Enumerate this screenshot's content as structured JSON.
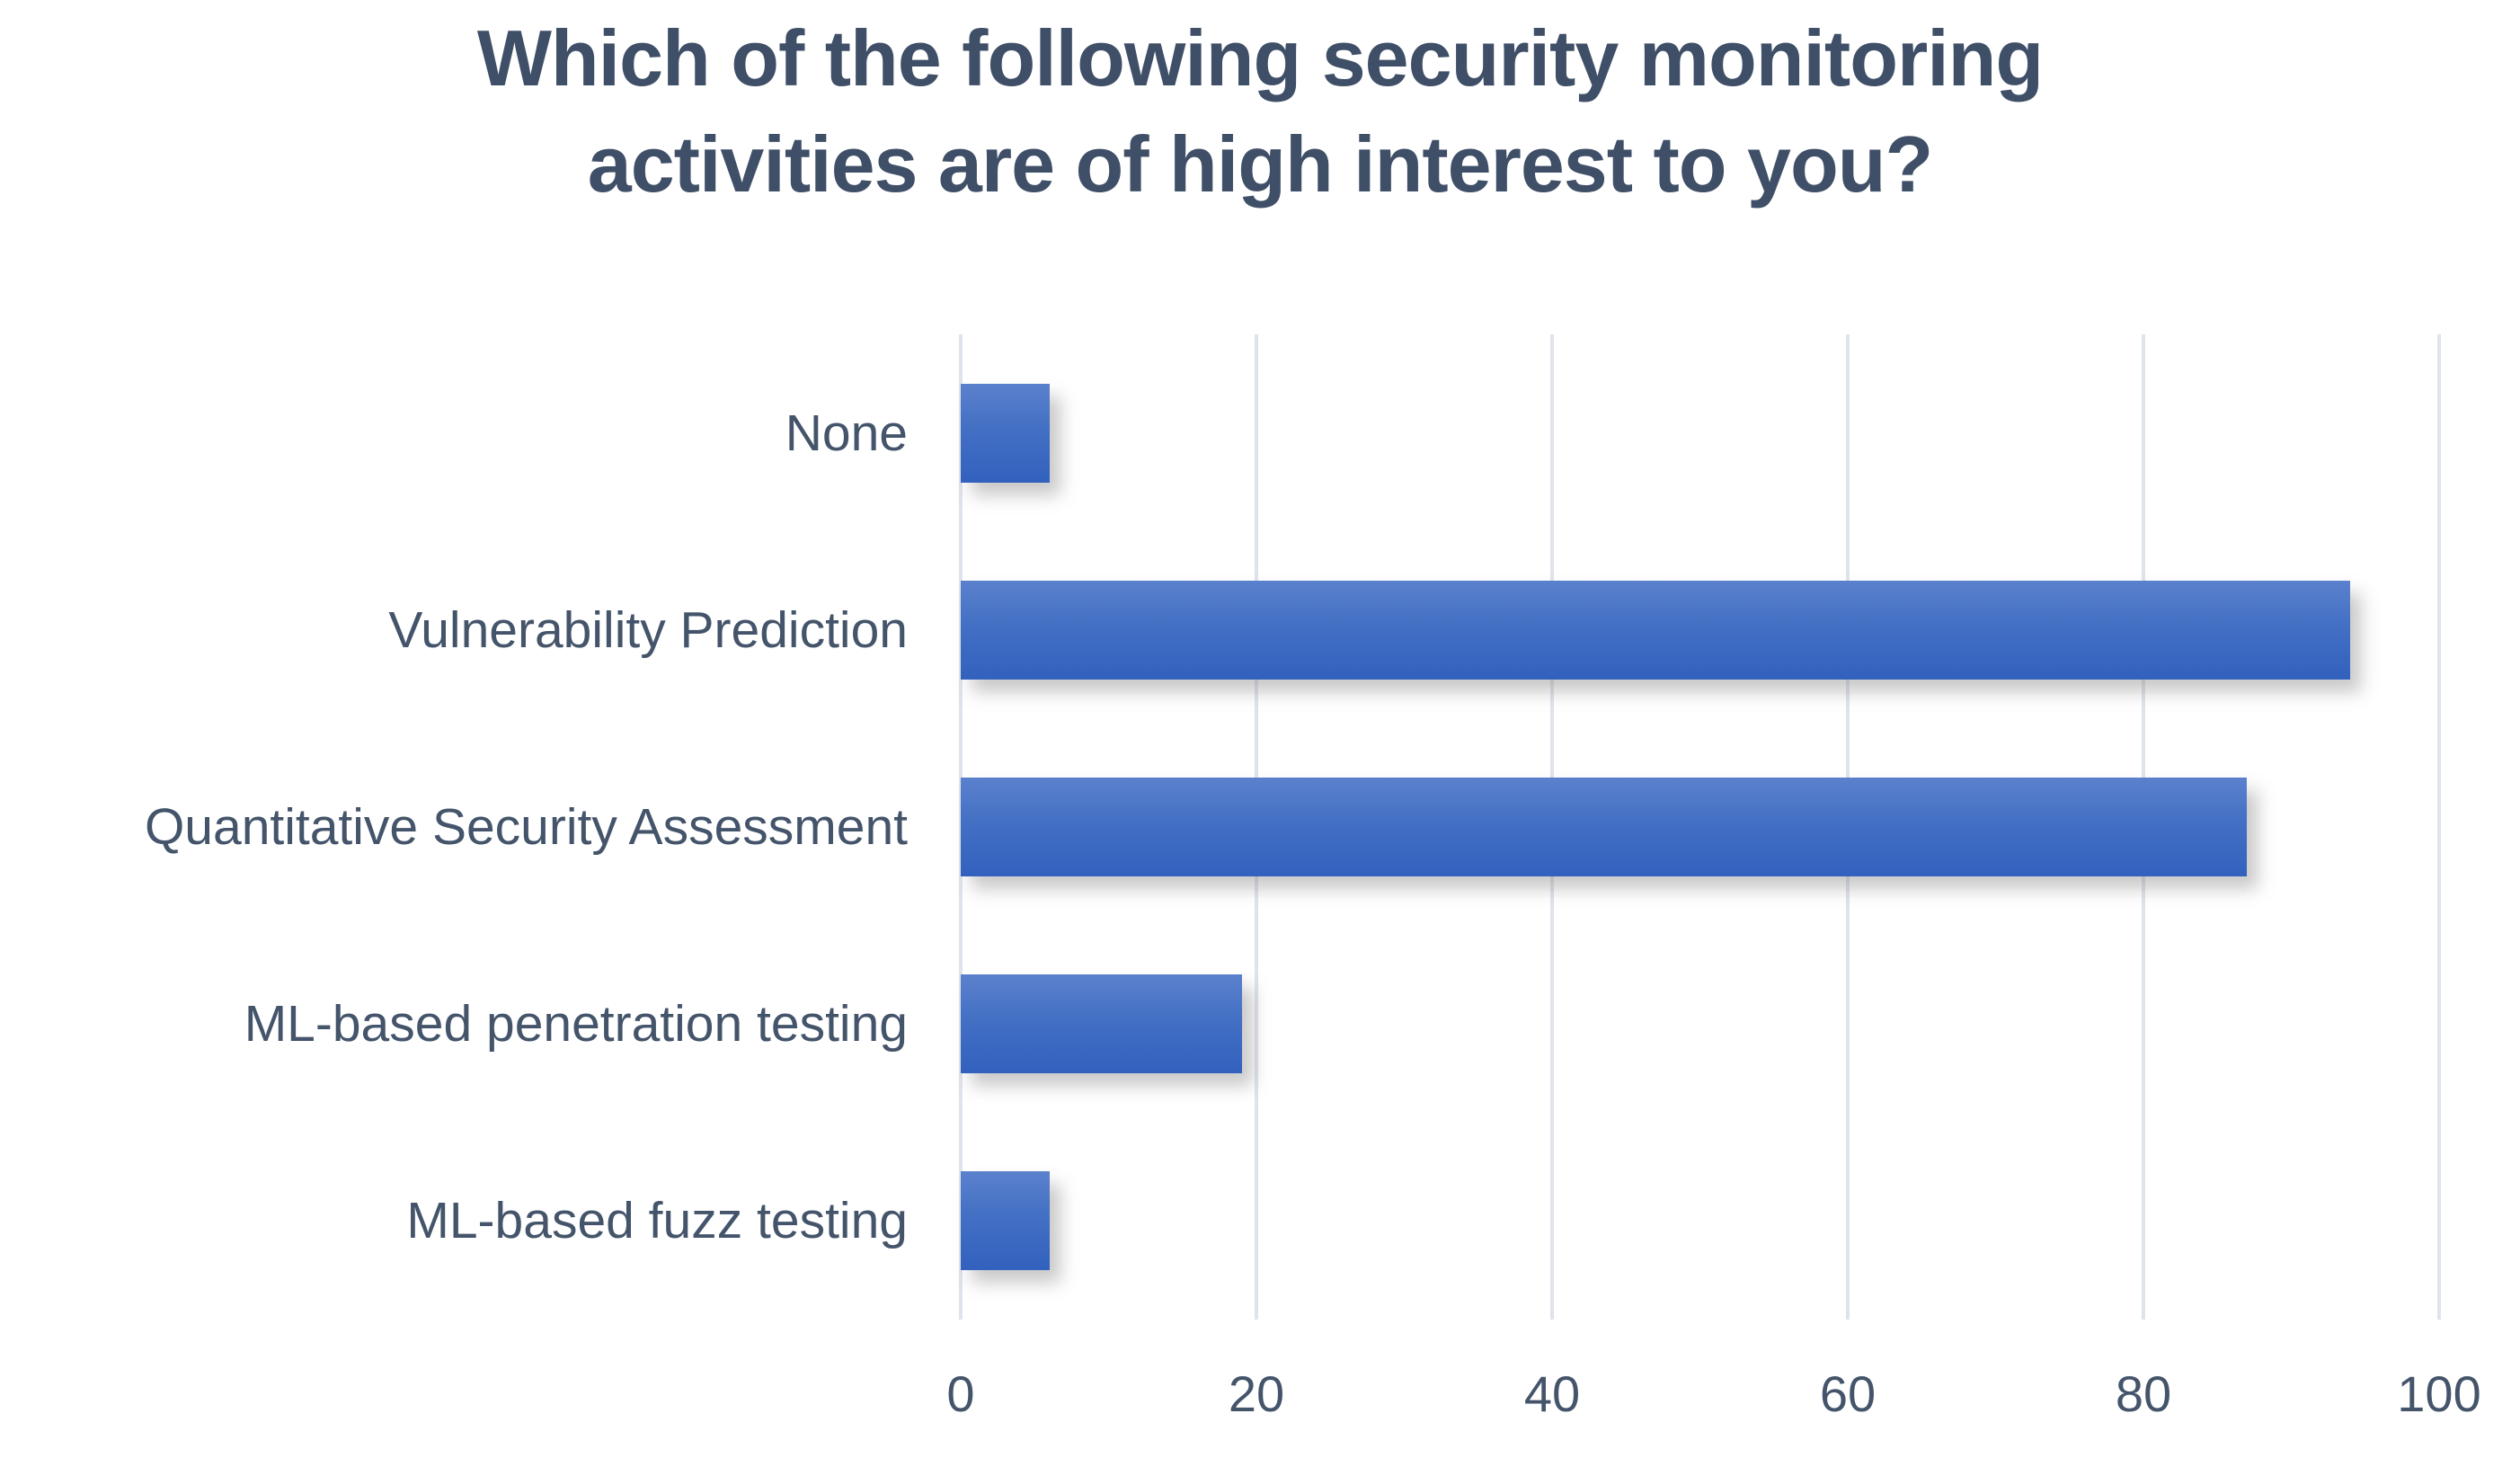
{
  "title": {
    "line1": "Which of the following security monitoring",
    "line2": "activities are of high interest to you?"
  },
  "chart_data": {
    "type": "bar",
    "orientation": "horizontal",
    "title": "Which of the following security monitoring activities are of high interest to you?",
    "categories": [
      "None",
      "Vulnerability Prediction",
      "Quantitative Security Assessment",
      "ML-based penetration testing",
      "ML-based fuzz testing"
    ],
    "values": [
      6,
      94,
      87,
      19,
      6
    ],
    "xlabel": "",
    "ylabel": "",
    "xlim": [
      0,
      100
    ],
    "x_ticks": [
      "0",
      "20",
      "40",
      "60",
      "80",
      "100"
    ],
    "grid": true,
    "legend": false,
    "colors": {
      "bar_gradient_top": "#5b81cd",
      "bar_gradient_bottom": "#3261be",
      "gridline": "#dfe4eb",
      "axis_text": "#44546a",
      "title_text": "#3f4f67",
      "background": "#ffffff"
    }
  }
}
